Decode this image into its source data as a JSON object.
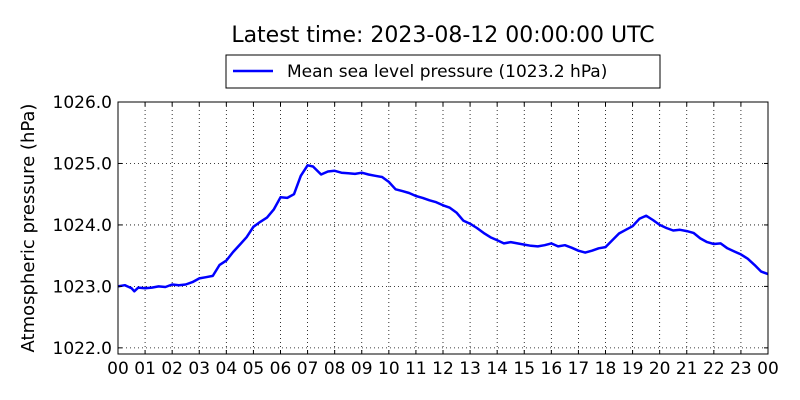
{
  "chart_data": {
    "type": "line",
    "title": "Latest time: 2023-08-12 00:00:00 UTC",
    "xlabel": "",
    "ylabel": "Atmospheric pressure (hPa)",
    "legend": {
      "position": "top-center",
      "entries": [
        "Mean sea level pressure (1023.2 hPa)"
      ]
    },
    "grid": true,
    "x_unit": "hour UTC",
    "xlim": [
      0,
      24
    ],
    "ylim": [
      1021.9,
      1026.0
    ],
    "x_ticks": [
      0,
      1,
      2,
      3,
      4,
      5,
      6,
      7,
      8,
      9,
      10,
      11,
      12,
      13,
      14,
      15,
      16,
      17,
      18,
      19,
      20,
      21,
      22,
      23,
      24
    ],
    "x_tick_labels": [
      "00",
      "01",
      "02",
      "03",
      "04",
      "05",
      "06",
      "07",
      "08",
      "09",
      "10",
      "11",
      "12",
      "13",
      "14",
      "15",
      "16",
      "17",
      "18",
      "19",
      "20",
      "21",
      "22",
      "23",
      "00"
    ],
    "y_ticks": [
      1022.0,
      1023.0,
      1024.0,
      1025.0,
      1026.0
    ],
    "y_tick_labels": [
      "1022.0",
      "1023.0",
      "1024.0",
      "1025.0",
      "1026.0"
    ],
    "series": [
      {
        "name": "Mean sea level pressure (1023.2 hPa)",
        "color": "#0000ff",
        "points": [
          [
            0.0,
            1023.0
          ],
          [
            0.25,
            1023.02
          ],
          [
            0.5,
            1022.97
          ],
          [
            0.6,
            1022.92
          ],
          [
            0.75,
            1022.98
          ],
          [
            1.0,
            1022.97
          ],
          [
            1.25,
            1022.98
          ],
          [
            1.5,
            1023.0
          ],
          [
            1.75,
            1022.99
          ],
          [
            2.0,
            1023.03
          ],
          [
            2.25,
            1023.02
          ],
          [
            2.5,
            1023.03
          ],
          [
            2.75,
            1023.07
          ],
          [
            3.0,
            1023.13
          ],
          [
            3.25,
            1023.15
          ],
          [
            3.5,
            1023.17
          ],
          [
            3.75,
            1023.35
          ],
          [
            4.0,
            1023.42
          ],
          [
            4.25,
            1023.56
          ],
          [
            4.5,
            1023.68
          ],
          [
            4.75,
            1023.8
          ],
          [
            5.0,
            1023.97
          ],
          [
            5.25,
            1024.05
          ],
          [
            5.5,
            1024.12
          ],
          [
            5.75,
            1024.25
          ],
          [
            6.0,
            1024.45
          ],
          [
            6.25,
            1024.44
          ],
          [
            6.5,
            1024.5
          ],
          [
            6.75,
            1024.8
          ],
          [
            7.0,
            1024.97
          ],
          [
            7.2,
            1024.95
          ],
          [
            7.5,
            1024.82
          ],
          [
            7.75,
            1024.87
          ],
          [
            8.0,
            1024.88
          ],
          [
            8.25,
            1024.85
          ],
          [
            8.5,
            1024.84
          ],
          [
            8.75,
            1024.83
          ],
          [
            9.0,
            1024.85
          ],
          [
            9.25,
            1024.82
          ],
          [
            9.5,
            1024.8
          ],
          [
            9.75,
            1024.78
          ],
          [
            10.0,
            1024.7
          ],
          [
            10.25,
            1024.58
          ],
          [
            10.5,
            1024.55
          ],
          [
            10.75,
            1024.52
          ],
          [
            11.0,
            1024.47
          ],
          [
            11.25,
            1024.44
          ],
          [
            11.5,
            1024.4
          ],
          [
            11.75,
            1024.37
          ],
          [
            12.0,
            1024.32
          ],
          [
            12.25,
            1024.28
          ],
          [
            12.5,
            1024.2
          ],
          [
            12.75,
            1024.07
          ],
          [
            13.0,
            1024.02
          ],
          [
            13.25,
            1023.95
          ],
          [
            13.5,
            1023.87
          ],
          [
            13.75,
            1023.8
          ],
          [
            14.0,
            1023.75
          ],
          [
            14.25,
            1023.7
          ],
          [
            14.5,
            1023.72
          ],
          [
            14.75,
            1023.7
          ],
          [
            15.0,
            1023.68
          ],
          [
            15.25,
            1023.66
          ],
          [
            15.5,
            1023.65
          ],
          [
            15.75,
            1023.67
          ],
          [
            16.0,
            1023.7
          ],
          [
            16.25,
            1023.65
          ],
          [
            16.5,
            1023.67
          ],
          [
            16.75,
            1023.63
          ],
          [
            17.0,
            1023.58
          ],
          [
            17.25,
            1023.55
          ],
          [
            17.5,
            1023.58
          ],
          [
            17.75,
            1023.62
          ],
          [
            18.0,
            1023.64
          ],
          [
            18.25,
            1023.75
          ],
          [
            18.5,
            1023.86
          ],
          [
            18.75,
            1023.92
          ],
          [
            19.0,
            1023.98
          ],
          [
            19.25,
            1024.1
          ],
          [
            19.5,
            1024.15
          ],
          [
            19.75,
            1024.08
          ],
          [
            20.0,
            1024.0
          ],
          [
            20.25,
            1023.95
          ],
          [
            20.5,
            1023.91
          ],
          [
            20.75,
            1023.92
          ],
          [
            21.0,
            1023.9
          ],
          [
            21.25,
            1023.87
          ],
          [
            21.5,
            1023.78
          ],
          [
            21.75,
            1023.72
          ],
          [
            22.0,
            1023.69
          ],
          [
            22.25,
            1023.7
          ],
          [
            22.5,
            1023.62
          ],
          [
            22.75,
            1023.57
          ],
          [
            23.0,
            1023.52
          ],
          [
            23.25,
            1023.45
          ],
          [
            23.5,
            1023.35
          ],
          [
            23.75,
            1023.24
          ],
          [
            24.0,
            1023.2
          ]
        ]
      }
    ]
  }
}
